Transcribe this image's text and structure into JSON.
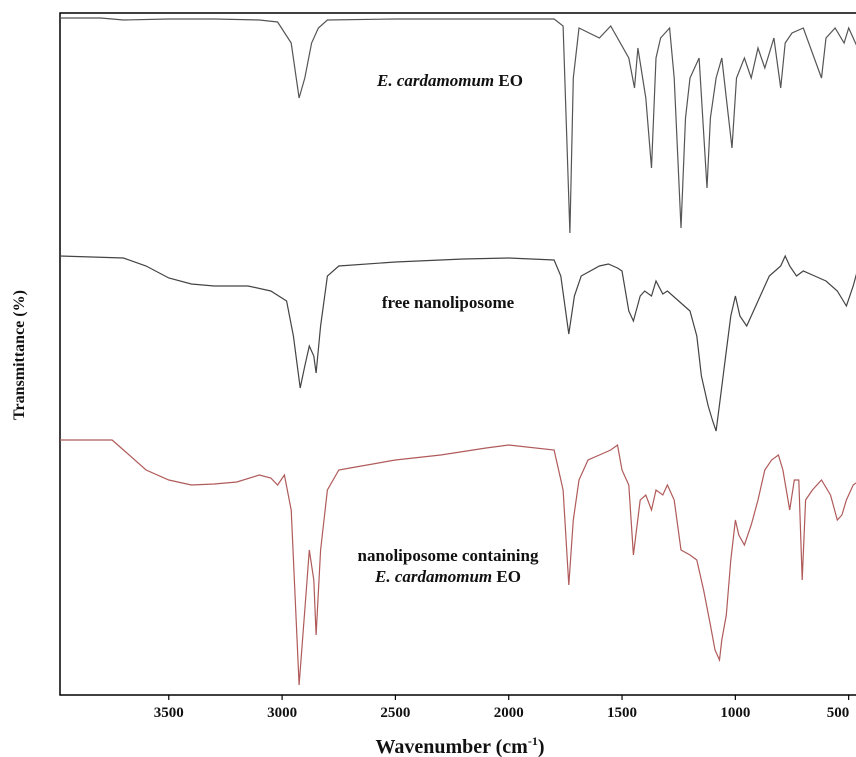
{
  "chart_data": {
    "type": "line",
    "xlabel": "Wavenumber (cm",
    "xlabel_sup": "-1",
    "xlabel_close": ")",
    "ylabel": "Transmittance (%)",
    "xlim": [
      3980,
      450
    ],
    "xticks": [
      3500,
      3000,
      2500,
      2000,
      1500,
      1000,
      500
    ],
    "grid": false,
    "legend": "none",
    "series": [
      {
        "label_lines": [
          [
            "E. cardamomum",
            " EO"
          ]
        ],
        "label_italic": [
          [
            true,
            false
          ]
        ],
        "color": "#555555",
        "points": [
          [
            3980,
            0
          ],
          [
            3800,
            0
          ],
          [
            3700,
            2
          ],
          [
            3500,
            1
          ],
          [
            3300,
            1
          ],
          [
            3100,
            2
          ],
          [
            3020,
            4
          ],
          [
            2960,
            25
          ],
          [
            2925,
            80
          ],
          [
            2900,
            60
          ],
          [
            2870,
            25
          ],
          [
            2840,
            10
          ],
          [
            2800,
            2
          ],
          [
            2500,
            1
          ],
          [
            2000,
            1
          ],
          [
            1800,
            1
          ],
          [
            1760,
            8
          ],
          [
            1730,
            215
          ],
          [
            1715,
            60
          ],
          [
            1690,
            10
          ],
          [
            1600,
            20
          ],
          [
            1550,
            8
          ],
          [
            1470,
            40
          ],
          [
            1445,
            70
          ],
          [
            1430,
            30
          ],
          [
            1395,
            80
          ],
          [
            1370,
            150
          ],
          [
            1350,
            40
          ],
          [
            1330,
            20
          ],
          [
            1290,
            10
          ],
          [
            1270,
            60
          ],
          [
            1240,
            210
          ],
          [
            1220,
            100
          ],
          [
            1200,
            60
          ],
          [
            1160,
            40
          ],
          [
            1125,
            170
          ],
          [
            1110,
            100
          ],
          [
            1085,
            60
          ],
          [
            1060,
            40
          ],
          [
            1040,
            80
          ],
          [
            1015,
            130
          ],
          [
            995,
            60
          ],
          [
            960,
            40
          ],
          [
            930,
            60
          ],
          [
            900,
            30
          ],
          [
            870,
            50
          ],
          [
            830,
            20
          ],
          [
            800,
            70
          ],
          [
            780,
            25
          ],
          [
            750,
            15
          ],
          [
            700,
            10
          ],
          [
            620,
            60
          ],
          [
            600,
            20
          ],
          [
            560,
            10
          ],
          [
            520,
            25
          ],
          [
            500,
            10
          ],
          [
            450,
            35
          ]
        ]
      },
      {
        "label_lines": [
          [
            "free nanoliposome"
          ]
        ],
        "label_italic": [
          [
            false
          ]
        ],
        "color": "#444444",
        "points": [
          [
            3980,
            0
          ],
          [
            3700,
            2
          ],
          [
            3600,
            10
          ],
          [
            3500,
            22
          ],
          [
            3400,
            28
          ],
          [
            3300,
            30
          ],
          [
            3150,
            30
          ],
          [
            3050,
            35
          ],
          [
            2980,
            45
          ],
          [
            2950,
            80
          ],
          [
            2920,
            132
          ],
          [
            2900,
            110
          ],
          [
            2880,
            90
          ],
          [
            2860,
            100
          ],
          [
            2850,
            117
          ],
          [
            2830,
            70
          ],
          [
            2800,
            20
          ],
          [
            2750,
            10
          ],
          [
            2500,
            6
          ],
          [
            2200,
            3
          ],
          [
            2000,
            2
          ],
          [
            1800,
            4
          ],
          [
            1770,
            20
          ],
          [
            1735,
            78
          ],
          [
            1710,
            40
          ],
          [
            1680,
            20
          ],
          [
            1600,
            10
          ],
          [
            1560,
            8
          ],
          [
            1520,
            12
          ],
          [
            1500,
            15
          ],
          [
            1470,
            55
          ],
          [
            1450,
            65
          ],
          [
            1420,
            40
          ],
          [
            1400,
            35
          ],
          [
            1370,
            40
          ],
          [
            1350,
            25
          ],
          [
            1320,
            38
          ],
          [
            1300,
            35
          ],
          [
            1250,
            45
          ],
          [
            1200,
            55
          ],
          [
            1170,
            80
          ],
          [
            1150,
            120
          ],
          [
            1120,
            150
          ],
          [
            1100,
            165
          ],
          [
            1085,
            175
          ],
          [
            1065,
            140
          ],
          [
            1040,
            95
          ],
          [
            1020,
            60
          ],
          [
            1000,
            40
          ],
          [
            980,
            60
          ],
          [
            950,
            70
          ],
          [
            920,
            55
          ],
          [
            880,
            35
          ],
          [
            850,
            20
          ],
          [
            800,
            10
          ],
          [
            780,
            0
          ],
          [
            760,
            10
          ],
          [
            730,
            20
          ],
          [
            700,
            15
          ],
          [
            650,
            20
          ],
          [
            600,
            25
          ],
          [
            550,
            35
          ],
          [
            510,
            50
          ],
          [
            480,
            30
          ],
          [
            450,
            5
          ]
        ]
      },
      {
        "label_lines": [
          [
            "nanoliposome containing"
          ],
          [
            "E. cardamomum",
            " EO"
          ]
        ],
        "label_italic": [
          [
            false
          ],
          [
            true,
            false
          ]
        ],
        "color": "#b05a5a",
        "points": [
          [
            3980,
            0
          ],
          [
            3750,
            0
          ],
          [
            3700,
            10
          ],
          [
            3600,
            30
          ],
          [
            3500,
            40
          ],
          [
            3400,
            45
          ],
          [
            3300,
            44
          ],
          [
            3200,
            42
          ],
          [
            3100,
            35
          ],
          [
            3050,
            38
          ],
          [
            3020,
            45
          ],
          [
            2990,
            35
          ],
          [
            2960,
            70
          ],
          [
            2925,
            245
          ],
          [
            2900,
            170
          ],
          [
            2880,
            110
          ],
          [
            2860,
            140
          ],
          [
            2850,
            195
          ],
          [
            2830,
            110
          ],
          [
            2800,
            50
          ],
          [
            2750,
            30
          ],
          [
            2700,
            28
          ],
          [
            2500,
            20
          ],
          [
            2300,
            15
          ],
          [
            2100,
            8
          ],
          [
            2000,
            5
          ],
          [
            1800,
            10
          ],
          [
            1760,
            50
          ],
          [
            1735,
            145
          ],
          [
            1715,
            80
          ],
          [
            1690,
            40
          ],
          [
            1650,
            20
          ],
          [
            1600,
            15
          ],
          [
            1550,
            10
          ],
          [
            1520,
            5
          ],
          [
            1500,
            30
          ],
          [
            1470,
            45
          ],
          [
            1450,
            115
          ],
          [
            1420,
            60
          ],
          [
            1395,
            55
          ],
          [
            1370,
            70
          ],
          [
            1350,
            50
          ],
          [
            1320,
            55
          ],
          [
            1300,
            45
          ],
          [
            1270,
            60
          ],
          [
            1240,
            110
          ],
          [
            1200,
            115
          ],
          [
            1170,
            120
          ],
          [
            1140,
            150
          ],
          [
            1110,
            185
          ],
          [
            1090,
            210
          ],
          [
            1070,
            220
          ],
          [
            1060,
            200
          ],
          [
            1040,
            175
          ],
          [
            1020,
            120
          ],
          [
            1000,
            80
          ],
          [
            985,
            95
          ],
          [
            960,
            105
          ],
          [
            930,
            85
          ],
          [
            900,
            60
          ],
          [
            870,
            30
          ],
          [
            840,
            20
          ],
          [
            810,
            15
          ],
          [
            790,
            30
          ],
          [
            760,
            70
          ],
          [
            740,
            40
          ],
          [
            720,
            40
          ],
          [
            705,
            140
          ],
          [
            690,
            60
          ],
          [
            660,
            50
          ],
          [
            620,
            40
          ],
          [
            580,
            55
          ],
          [
            550,
            80
          ],
          [
            530,
            75
          ],
          [
            510,
            60
          ],
          [
            480,
            45
          ],
          [
            450,
            40
          ]
        ]
      }
    ]
  }
}
